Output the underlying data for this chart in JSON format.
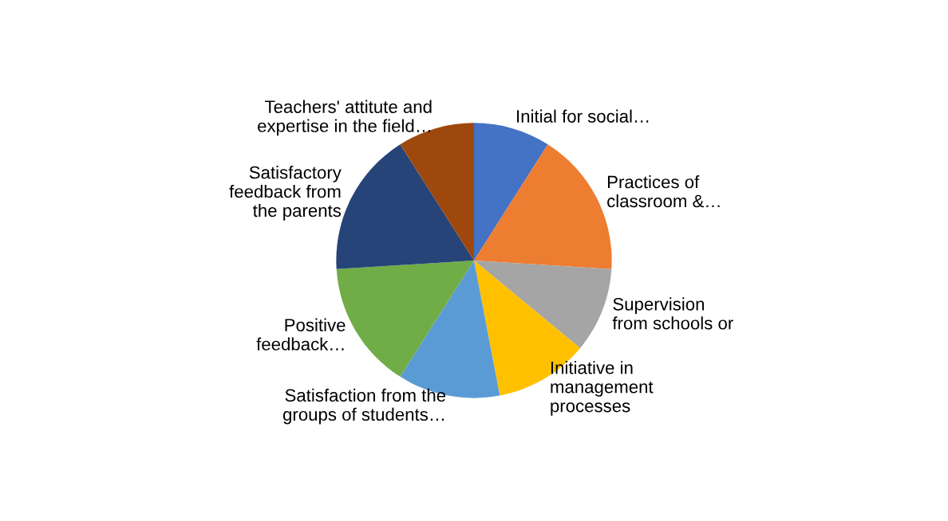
{
  "chart_data": {
    "type": "pie",
    "categories": [
      "Initial for social…",
      "Practices of\nclassroom &…",
      "Supervision\nfrom schools or",
      "Initiative in\nmanagement\nprocesses",
      "Satisfaction from the\ngroups of students…",
      "Positive\nfeedback…",
      "Satisfactory\nfeedback from\nthe parents",
      "Teachers' attitute and\nexpertise in the field…"
    ],
    "values": [
      9,
      17,
      10,
      11,
      12,
      15,
      17,
      9
    ],
    "colors": [
      "#4472c4",
      "#ed7d31",
      "#a5a5a5",
      "#ffc000",
      "#5b9bd5",
      "#70ad47",
      "#264478",
      "#9e480e"
    ]
  }
}
